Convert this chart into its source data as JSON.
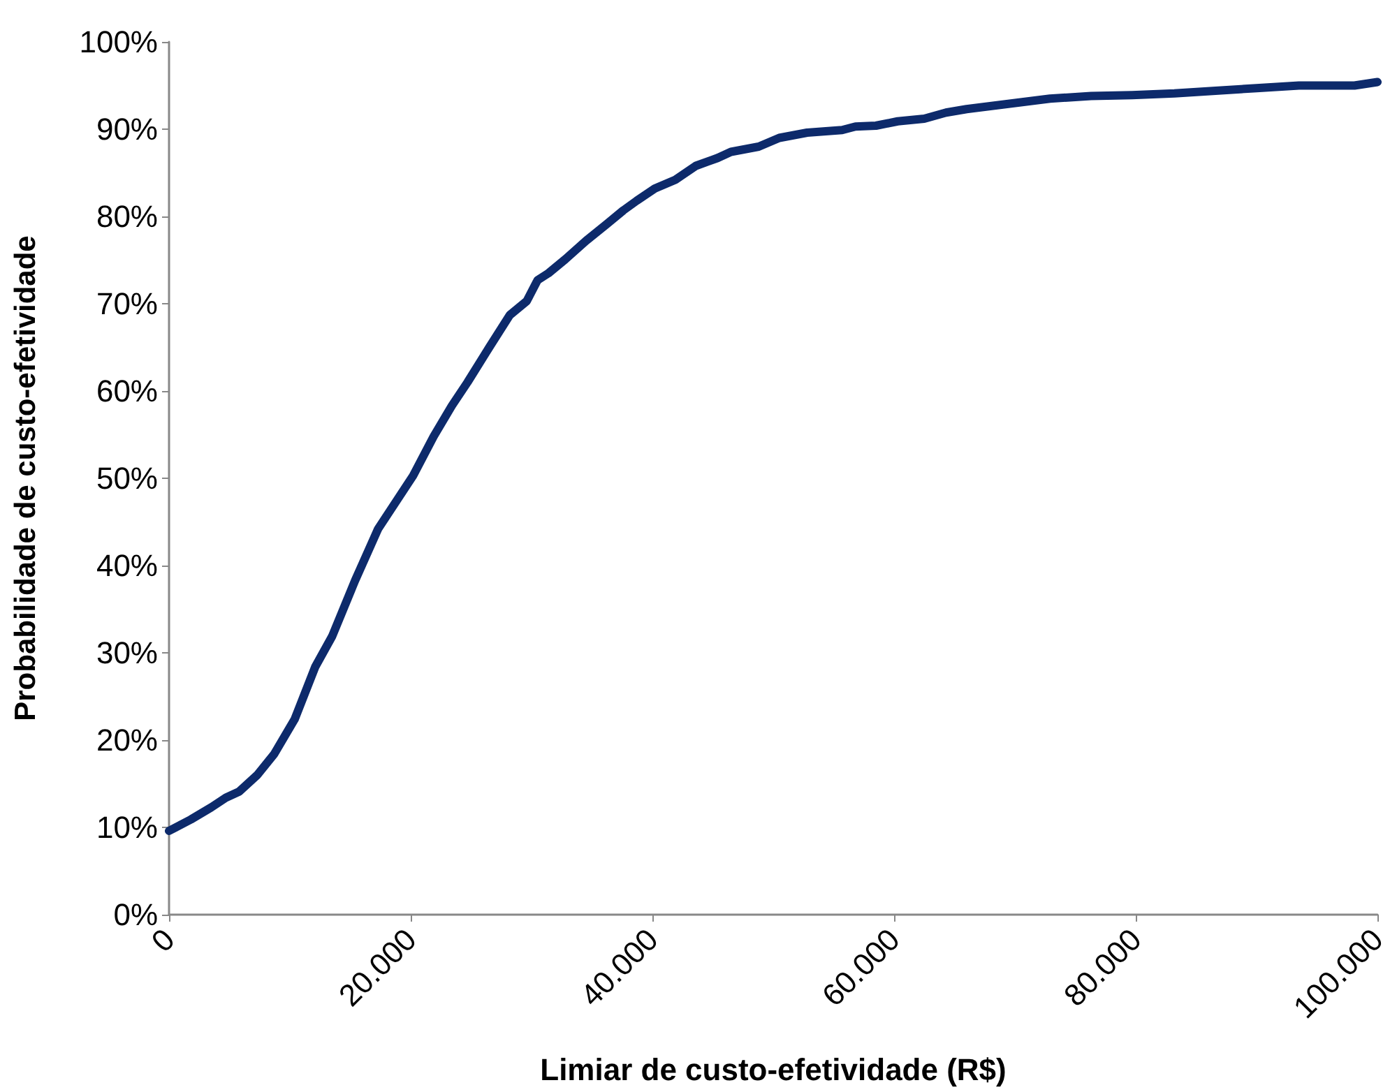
{
  "chart_data": {
    "type": "line",
    "xlabel": "Limiar de custo-efetividade (R$)",
    "ylabel": "Probabilidade de custo-efetividade",
    "x": [
      0,
      1800,
      3500,
      4700,
      5800,
      7300,
      8700,
      10400,
      12100,
      13500,
      15400,
      17300,
      20200,
      21900,
      23400,
      24700,
      26500,
      28200,
      29600,
      30500,
      31400,
      32800,
      34500,
      36200,
      37600,
      38700,
      40200,
      41900,
      43600,
      45400,
      46500,
      48800,
      50500,
      52800,
      55700,
      56800,
      58500,
      60300,
      62500,
      64300,
      66000,
      68300,
      70600,
      72900,
      76300,
      79700,
      83200,
      86600,
      90000,
      93500,
      98100,
      100000
    ],
    "series": [
      {
        "color": "#0d2a6b",
        "values": [
          9.6,
          10.9,
          12.3,
          13.4,
          14.1,
          16.0,
          18.4,
          22.4,
          28.4,
          31.9,
          38.3,
          44.2,
          50.3,
          54.8,
          58.3,
          61.0,
          65.0,
          68.7,
          70.3,
          72.7,
          73.5,
          75.1,
          77.2,
          79.1,
          80.7,
          81.8,
          83.2,
          84.2,
          85.8,
          86.7,
          87.4,
          88.0,
          89.0,
          89.6,
          89.9,
          90.3,
          90.4,
          90.9,
          91.2,
          91.9,
          92.3,
          92.7,
          93.1,
          93.5,
          93.8,
          93.9,
          94.1,
          94.4,
          94.7,
          95.0,
          95.0,
          95.4
        ]
      }
    ],
    "xlim": [
      0,
      100000
    ],
    "xticks": [
      0,
      {
        "value": 20000,
        "label": "20.000"
      },
      {
        "value": 40000,
        "label": "40.000"
      },
      {
        "value": 60000,
        "label": "60.000"
      },
      {
        "value": 80000,
        "label": "80.000"
      },
      {
        "value": 100000,
        "label": "100.000"
      }
    ],
    "ylim": [
      0,
      100
    ],
    "yticks": [
      {
        "value": 0,
        "label": "0%"
      },
      {
        "value": 10,
        "label": "10%"
      },
      {
        "value": 20,
        "label": "20%"
      },
      {
        "value": 30,
        "label": "30%"
      },
      {
        "value": 40,
        "label": "40%"
      },
      {
        "value": 50,
        "label": "50%"
      },
      {
        "value": 60,
        "label": "60%"
      },
      {
        "value": 70,
        "label": "70%"
      },
      {
        "value": 80,
        "label": "80%"
      },
      {
        "value": 90,
        "label": "90%"
      },
      {
        "value": 100,
        "label": "100%"
      }
    ],
    "grid": false,
    "marker": "none",
    "line_style": "solid"
  }
}
